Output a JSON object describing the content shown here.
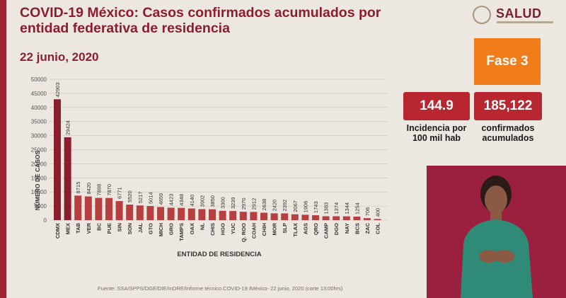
{
  "title": "COVID-19 México: Casos confirmados acumulados por entidad federativa de residencia",
  "date": "22 junio, 2020",
  "logo_text": "SALUD",
  "phase": "Fase 3",
  "stats": [
    {
      "value": "144.9",
      "label_line1": "Incidencia por",
      "label_line2": "100 mil hab"
    },
    {
      "value": "185,122",
      "label_line1": "confirmados",
      "label_line2": "acumulados"
    }
  ],
  "source": "Fuente: SSA/SPPS/DGE/DIE/InDRE/Informe técnico.COVID-19 /México- 22 junio, 2020 (corte 13:00hrs)",
  "colors": {
    "bar_main": "#8b1e2c",
    "bar": "#b73f3f",
    "phase": "#f07d1a",
    "stat": "#b8262f"
  },
  "chart_data": {
    "type": "bar",
    "title": "",
    "xlabel": "ENTIDAD DE RESIDENCIA",
    "ylabel": "NÚMERO DE CASOS",
    "ylim": [
      0,
      50000
    ],
    "yticks": [
      0,
      5000,
      10000,
      15000,
      20000,
      25000,
      30000,
      35000,
      40000,
      45000,
      50000
    ],
    "grid": true,
    "categories": [
      "CDMX",
      "MEX",
      "TAB",
      "VER",
      "BC",
      "PUE",
      "SIN",
      "SON",
      "JAL",
      "GTO",
      "MICH",
      "GRO",
      "TAMPS",
      "OAX",
      "NL",
      "CHIS",
      "HGO",
      "YUC",
      "Q. ROO",
      "COAH",
      "CHIH",
      "MOR",
      "SLP",
      "TLAX",
      "AGS",
      "QRO",
      "CAMP",
      "DGO",
      "NAY",
      "BCS",
      "ZAC",
      "COL"
    ],
    "values": [
      42903,
      29424,
      8715,
      8420,
      7898,
      7870,
      6771,
      5520,
      5217,
      5014,
      4659,
      4423,
      4348,
      4140,
      3902,
      3850,
      3300,
      3239,
      2970,
      2912,
      2638,
      2420,
      2392,
      2067,
      1906,
      1743,
      1383,
      1374,
      1344,
      1254,
      706,
      400
    ]
  }
}
